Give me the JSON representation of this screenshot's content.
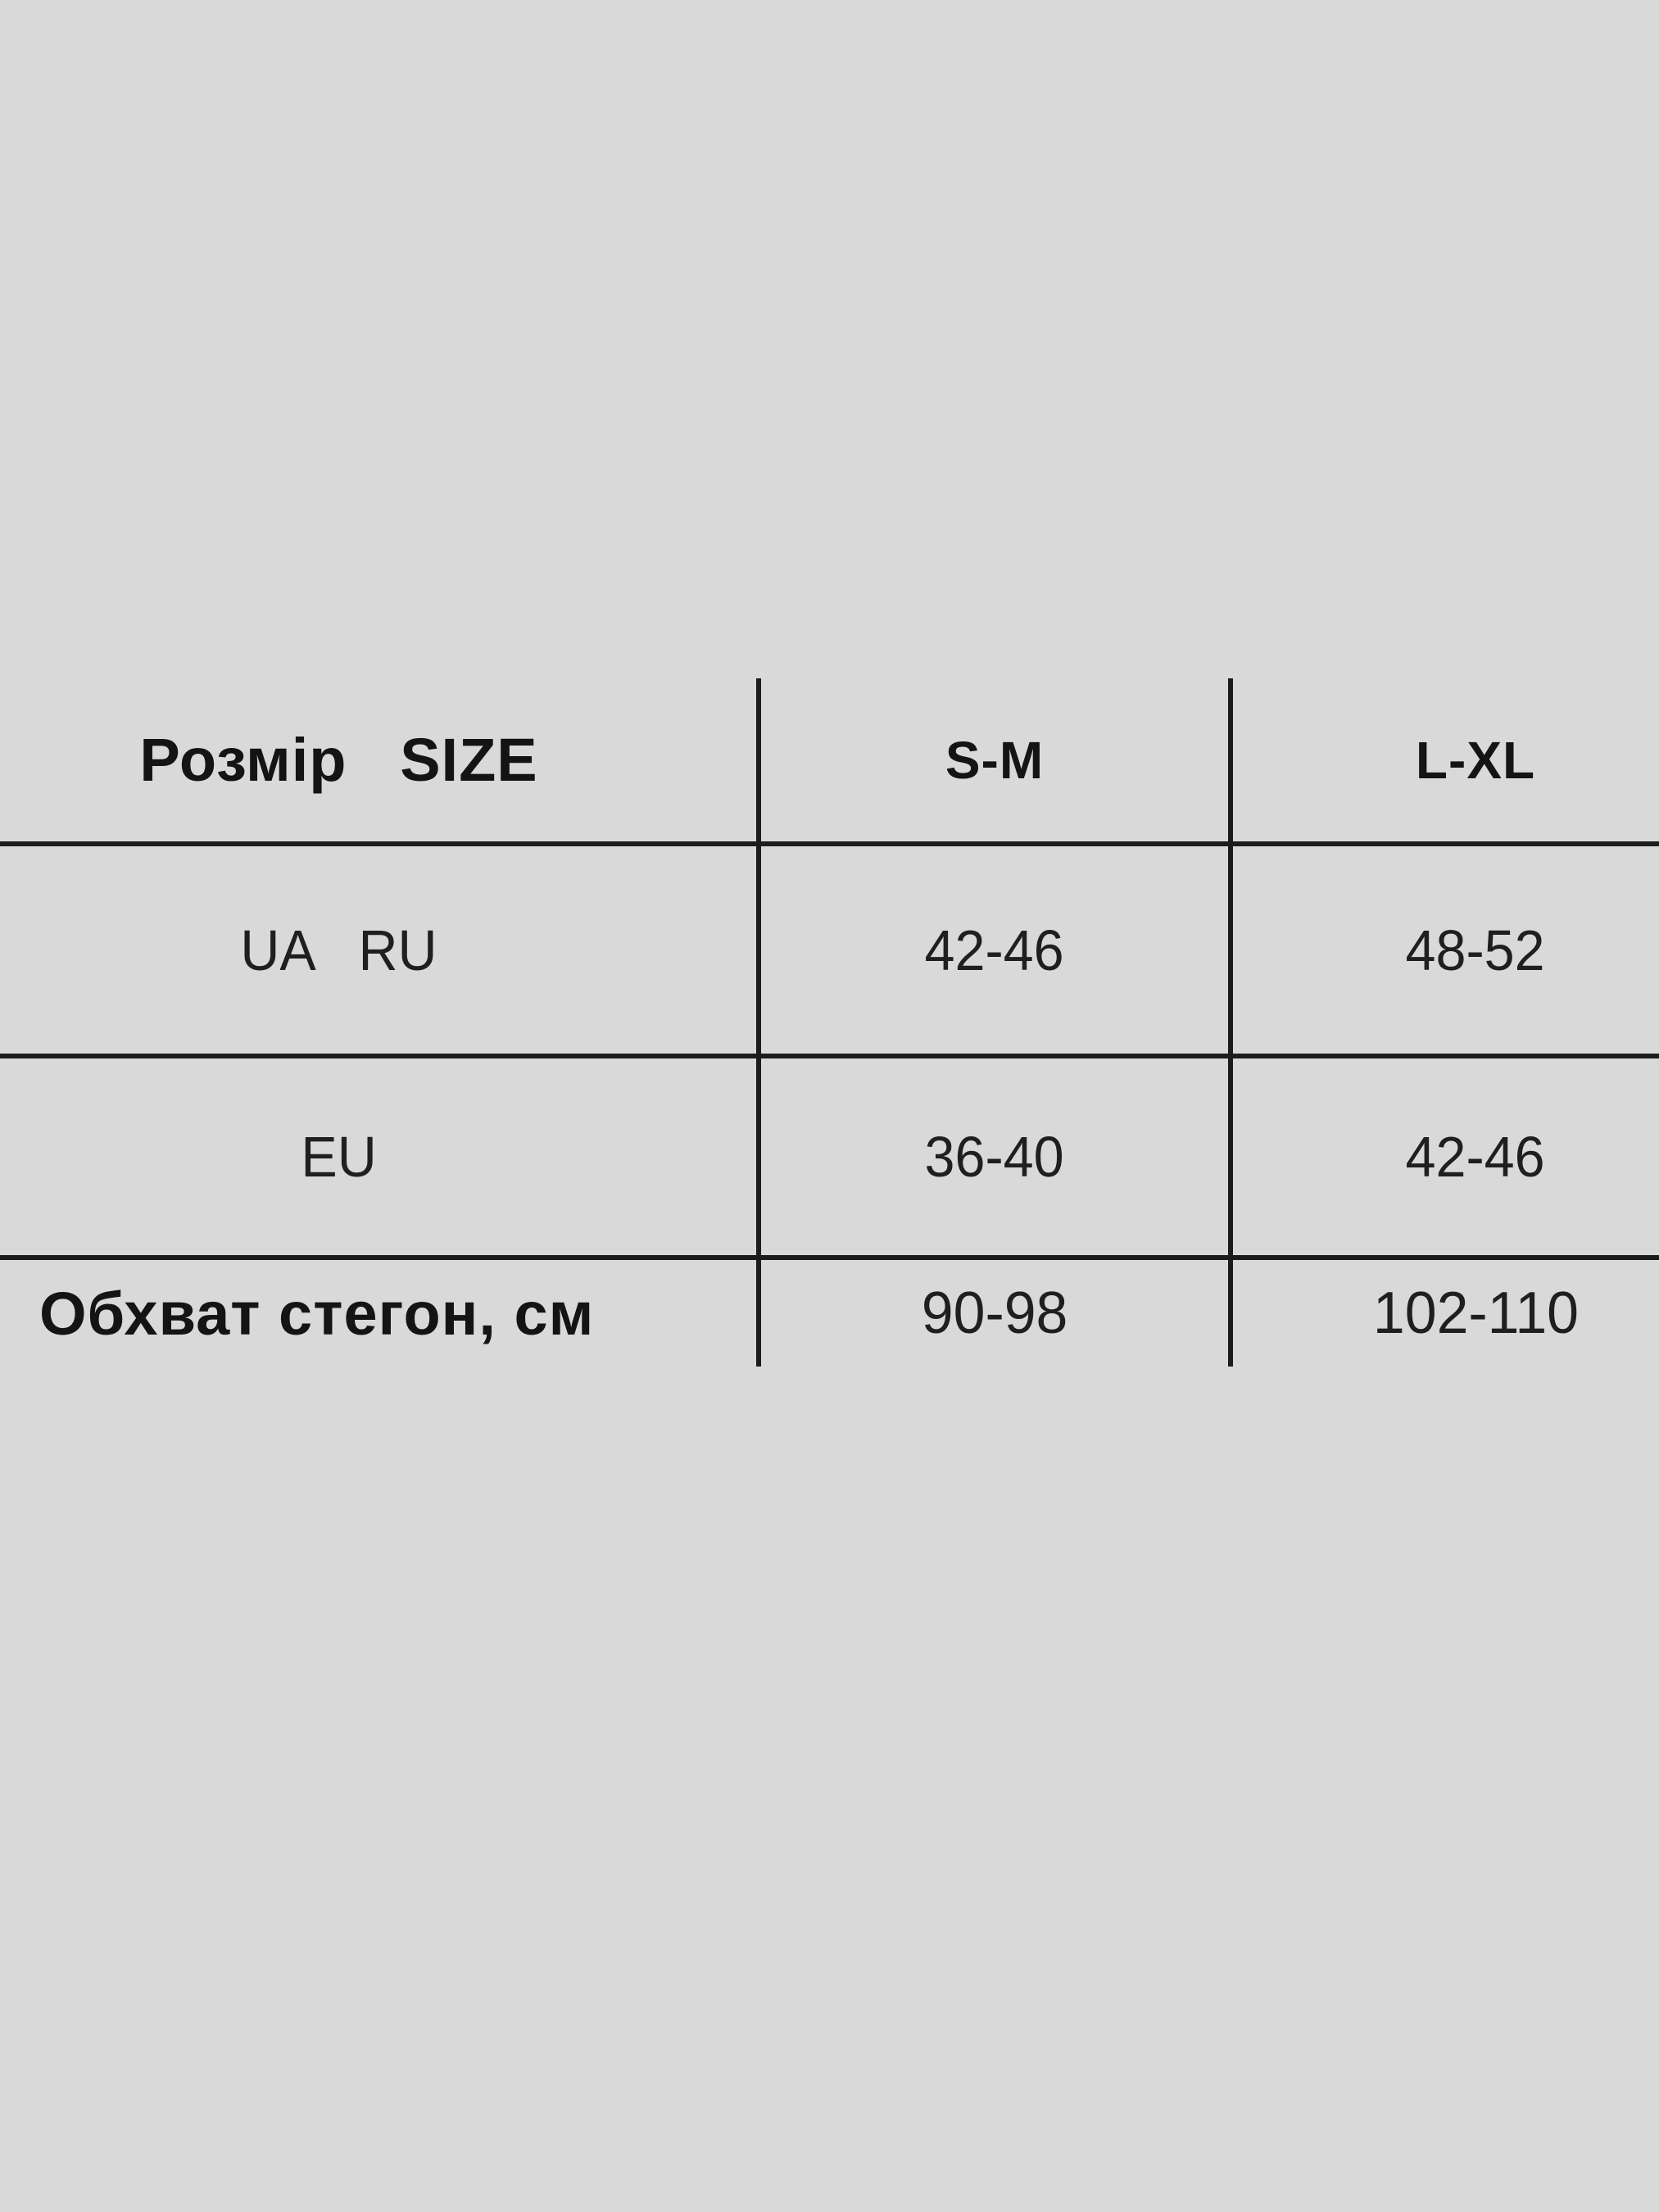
{
  "page": {
    "background_color": "#d9d9d9",
    "rule_color": "#1c1c1c",
    "text_color": "#171717"
  },
  "table": {
    "header": {
      "size_label": "Розмір   SIZE",
      "sm_label": "S-M",
      "lxl_label": "L-XL"
    },
    "rows": [
      {
        "label": "UA   RU",
        "sm": "42-46",
        "lxl": "48-52"
      },
      {
        "label": "EU",
        "sm": "36-40",
        "lxl": "42-46"
      },
      {
        "label": "Обхват стегон, см",
        "sm": "90-98",
        "lxl": "102-110"
      }
    ]
  }
}
